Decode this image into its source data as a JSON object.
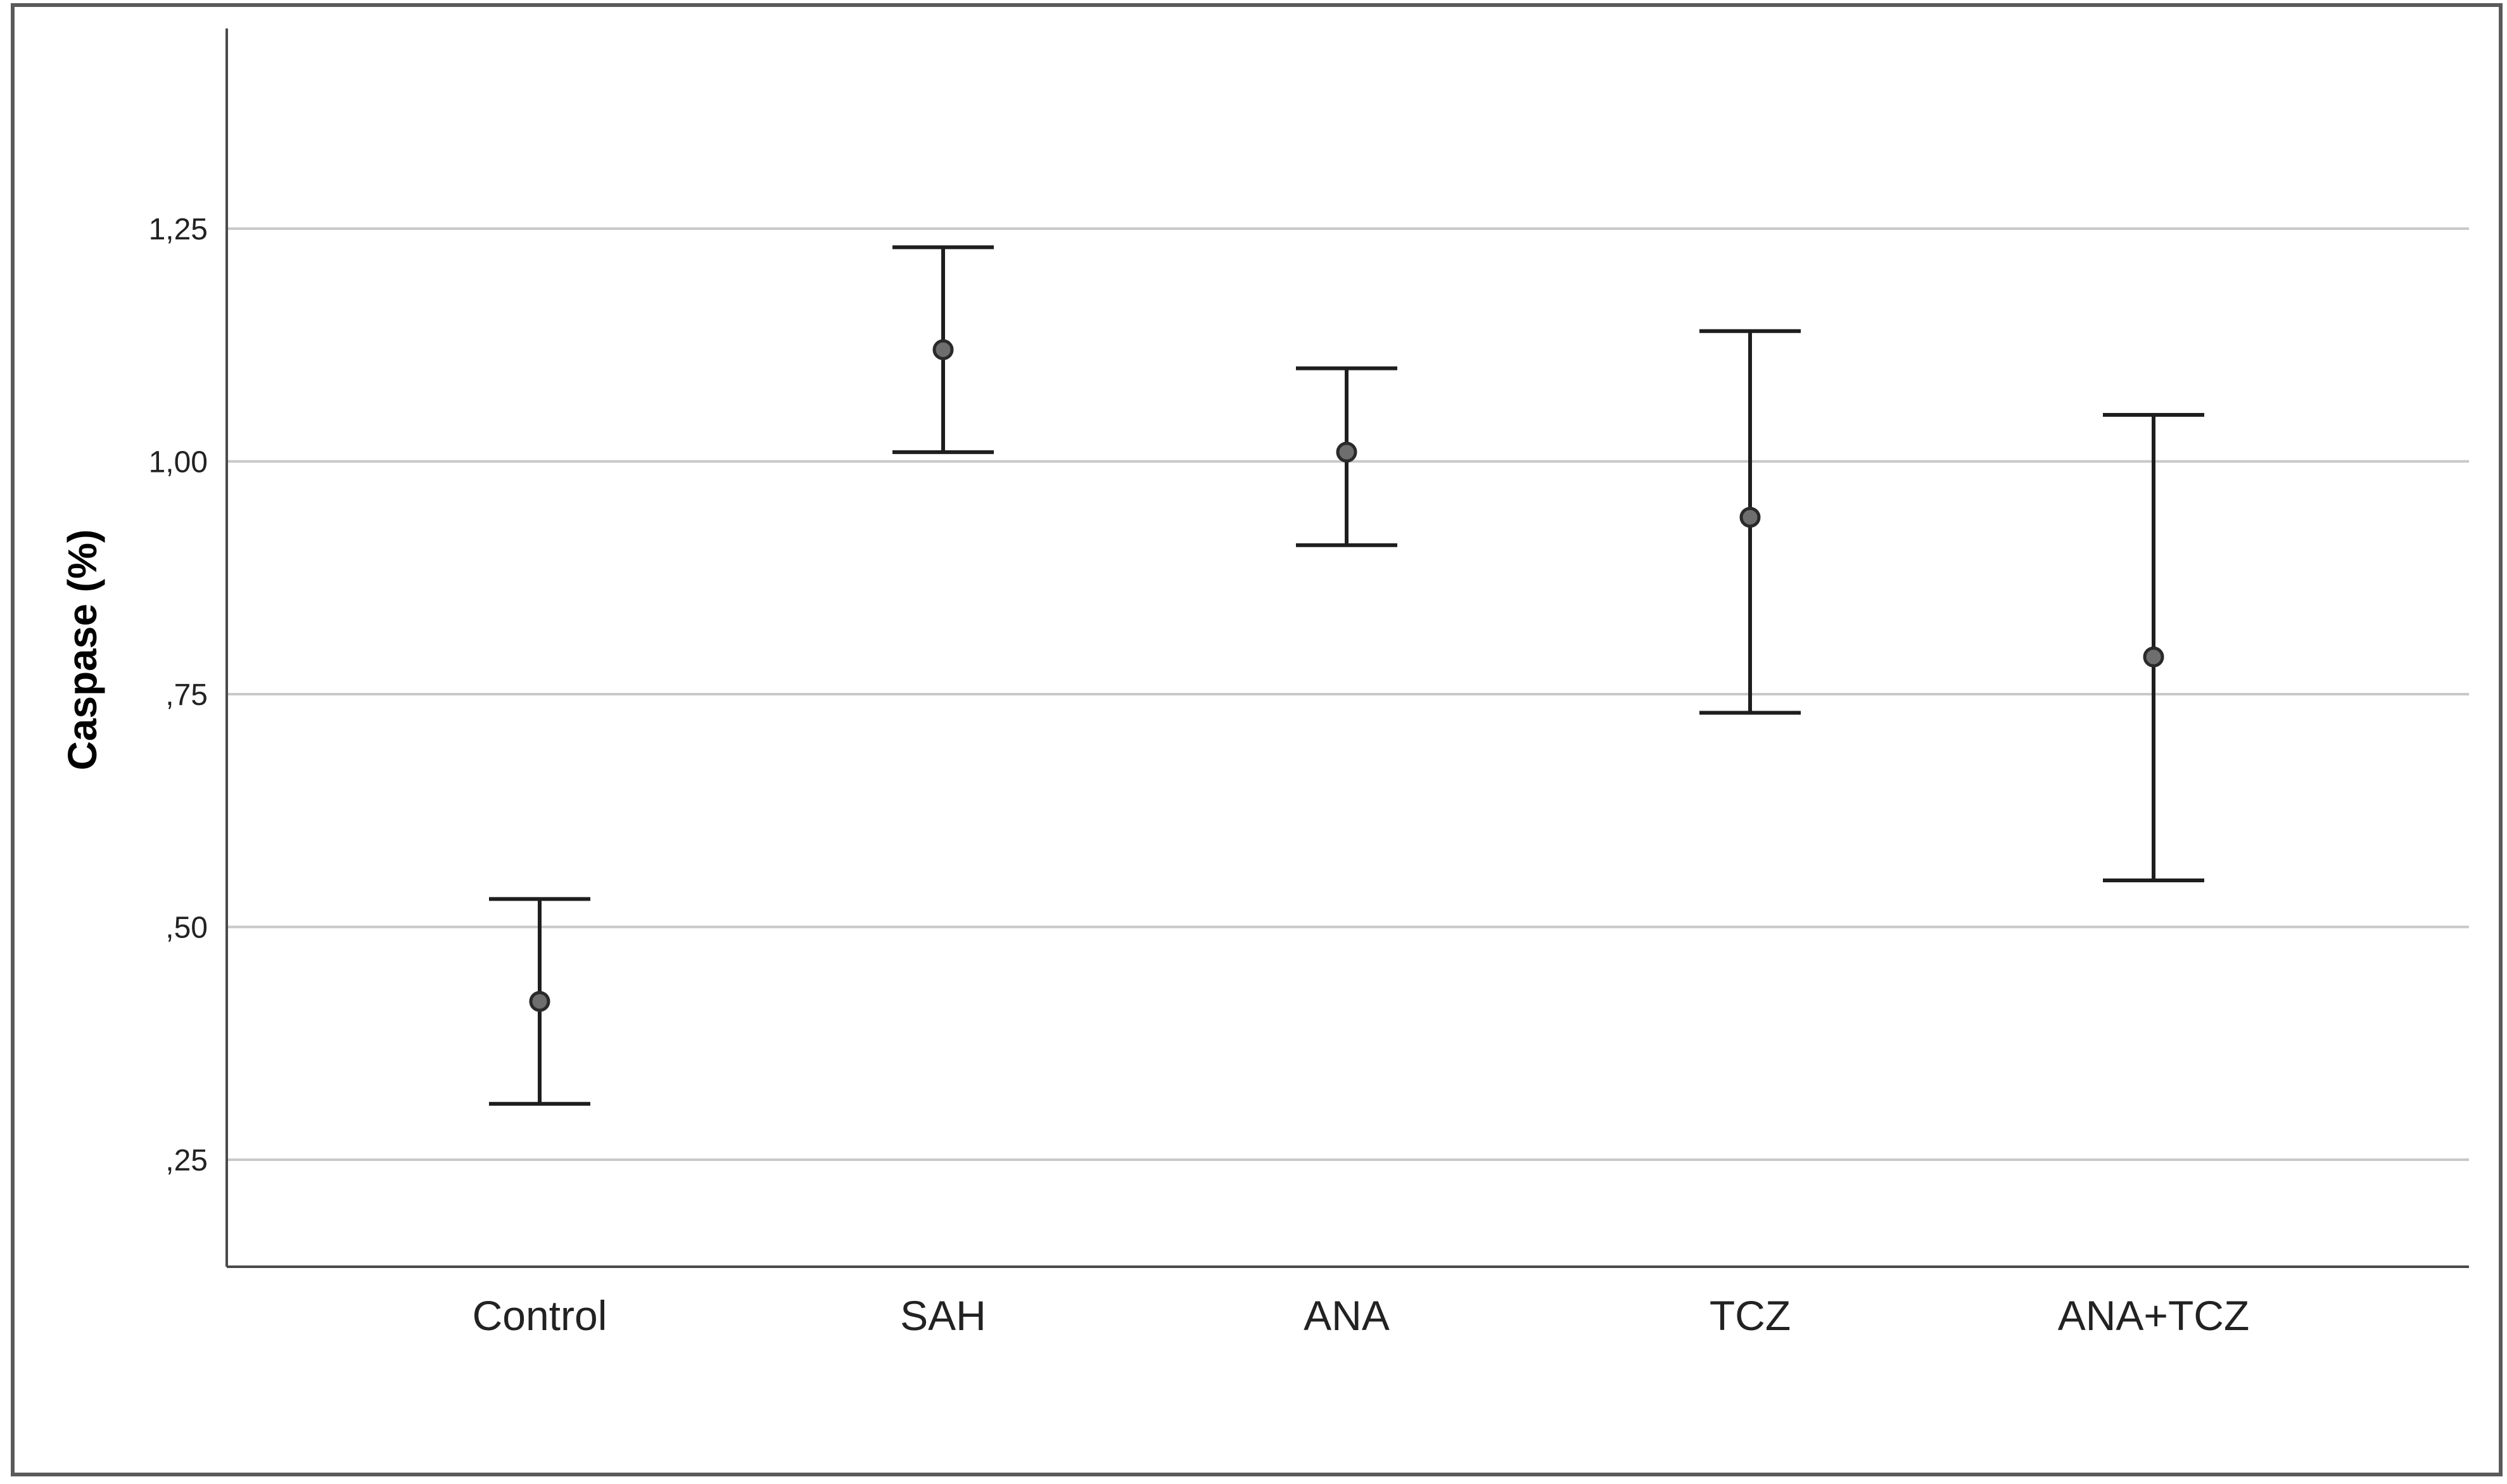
{
  "chart_data": {
    "type": "errorbar",
    "title": "",
    "xlabel": "",
    "ylabel": "Caspase (%)",
    "ylim": [
      0.135,
      1.465
    ],
    "yticks": [
      0.25,
      0.5,
      0.75,
      1.0,
      1.25
    ],
    "ytick_labels": [
      ",25",
      ",50",
      ",75",
      "1,00",
      "1,25"
    ],
    "grid": true,
    "categories": [
      "Control",
      "SAH",
      "ANA",
      "TCZ",
      "ANA+TCZ"
    ],
    "series": [
      {
        "means": [
          0.42,
          1.12,
          1.01,
          0.94,
          0.79
        ],
        "lower": [
          0.31,
          1.01,
          0.91,
          0.73,
          0.55
        ],
        "upper": [
          0.53,
          1.23,
          1.1,
          1.14,
          1.05
        ]
      }
    ],
    "colors": {
      "grid": "#c8c8c8",
      "axis": "#4a4a4a",
      "errorbar": "#1e1e1e",
      "marker_fill": "#6e6e6e",
      "marker_stroke": "#2a2a2a",
      "frame": "#5a5a5a"
    }
  }
}
